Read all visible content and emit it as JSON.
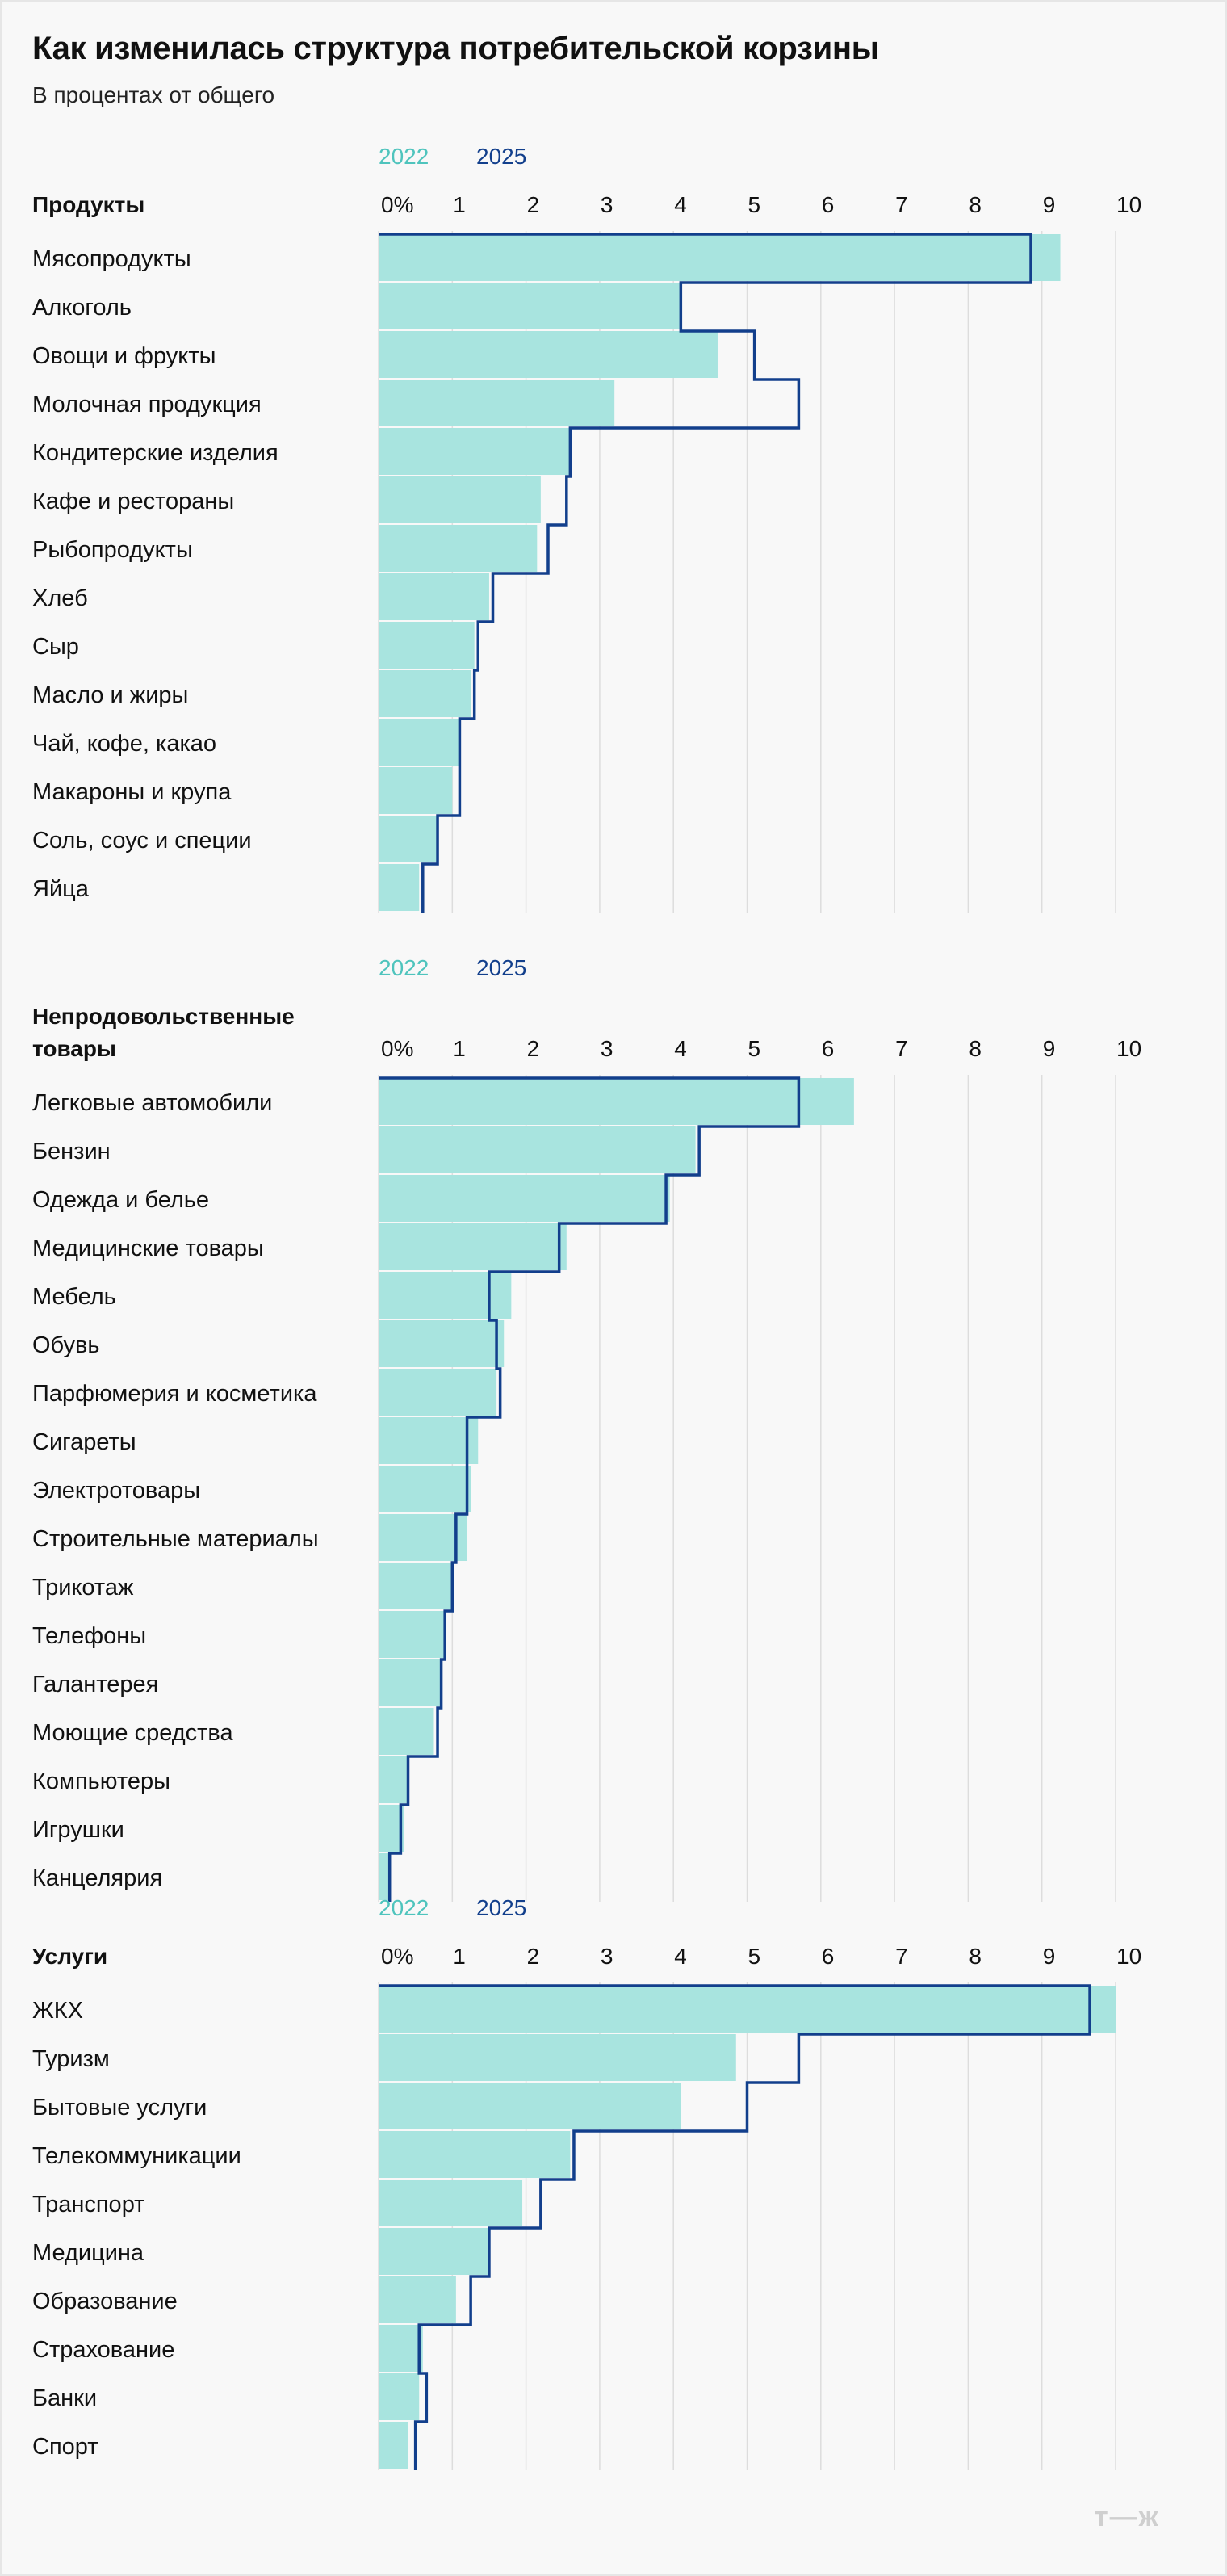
{
  "header": {
    "title": "Как изменилась структура потребительской корзины",
    "subtitle": "В процентах от общего"
  },
  "footer": {
    "logo_text": "т—ж"
  },
  "colors": {
    "y2022": "#a8e4df",
    "y2025": "#123f8c",
    "grid": "#dddddd",
    "legend2022": "#4fc4bd"
  },
  "chart_data": [
    {
      "type": "bar",
      "title": "Продукты",
      "legend": [
        "2022",
        "2025"
      ],
      "xlim": [
        0,
        10
      ],
      "ticks": [
        "0%",
        "1",
        "2",
        "3",
        "4",
        "5",
        "6",
        "7",
        "8",
        "9",
        "10"
      ],
      "categories": [
        "Мясопродукты",
        "Алкоголь",
        "Овощи и фрукты",
        "Молочная продукция",
        "Кондитерские изделия",
        "Кафе и рестораны",
        "Рыбопродукты",
        "Хлеб",
        "Сыр",
        "Масло и жиры",
        "Чай, кофе, какао",
        "Макароны и крупа",
        "Соль, соус и специи",
        "Яйца"
      ],
      "series": [
        {
          "name": "2022",
          "values": [
            9.25,
            4.1,
            4.6,
            3.2,
            2.6,
            2.2,
            2.15,
            1.5,
            1.3,
            1.25,
            1.1,
            1.0,
            0.8,
            0.55
          ]
        },
        {
          "name": "2025",
          "values": [
            8.85,
            4.1,
            5.1,
            5.7,
            2.6,
            2.55,
            2.3,
            1.55,
            1.35,
            1.3,
            1.1,
            1.1,
            0.8,
            0.6
          ]
        }
      ]
    },
    {
      "type": "bar",
      "title": "Непродовольственные товары",
      "legend": [
        "2022",
        "2025"
      ],
      "xlim": [
        0,
        10
      ],
      "ticks": [
        "0%",
        "1",
        "2",
        "3",
        "4",
        "5",
        "6",
        "7",
        "8",
        "9",
        "10"
      ],
      "categories": [
        "Легковые автомобили",
        "Бензин",
        "Одежда и белье",
        "Медицинские товары",
        "Мебель",
        "Обувь",
        "Парфюмерия и косметика",
        "Сигареты",
        "Электротовары",
        "Строительные материалы",
        "Трикотаж",
        "Телефоны",
        "Галантерея",
        "Моющие средства",
        "Компьютеры",
        "Игрушки",
        "Канцелярия"
      ],
      "series": [
        {
          "name": "2022",
          "values": [
            6.45,
            4.3,
            3.95,
            2.55,
            1.8,
            1.7,
            1.6,
            1.35,
            1.25,
            1.2,
            1.0,
            0.9,
            0.85,
            0.75,
            0.4,
            0.35,
            0.15
          ]
        },
        {
          "name": "2025",
          "values": [
            5.7,
            4.35,
            3.9,
            2.45,
            1.5,
            1.6,
            1.65,
            1.2,
            1.2,
            1.05,
            1.0,
            0.9,
            0.85,
            0.8,
            0.4,
            0.3,
            0.15
          ]
        }
      ]
    },
    {
      "type": "bar",
      "title": "Услуги",
      "legend": [
        "2022",
        "2025"
      ],
      "xlim": [
        0,
        10
      ],
      "ticks": [
        "0%",
        "1",
        "2",
        "3",
        "4",
        "5",
        "6",
        "7",
        "8",
        "9",
        "10"
      ],
      "categories": [
        "ЖКХ",
        "Туризм",
        "Бытовые услуги",
        "Телекоммуникации",
        "Транспорт",
        "Медицина",
        "Образование",
        "Страхование",
        "Банки",
        "Спорт"
      ],
      "series": [
        {
          "name": "2022",
          "values": [
            10.0,
            4.85,
            4.1,
            2.6,
            1.95,
            1.5,
            1.05,
            0.6,
            0.55,
            0.4
          ]
        },
        {
          "name": "2025",
          "values": [
            9.65,
            5.7,
            5.0,
            2.65,
            2.2,
            1.5,
            1.25,
            0.55,
            0.65,
            0.5
          ]
        }
      ]
    }
  ]
}
